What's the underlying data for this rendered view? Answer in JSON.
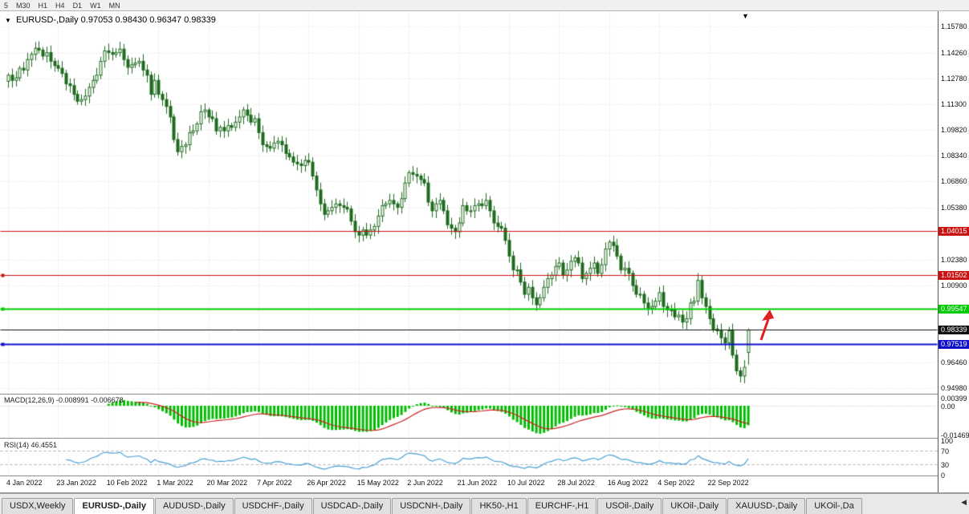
{
  "toolbar": {
    "timeframes": [
      "5",
      "M30",
      "H1",
      "H4",
      "D1",
      "W1",
      "MN"
    ]
  },
  "icons": {
    "dropdown": "▼",
    "bar_marker": "▼",
    "tab_scroll": "◀"
  },
  "chart_data": {
    "type": "candlestick",
    "title": "EURUSD-,Daily",
    "current_ohlc_text": "0.97053 0.98430 0.96347 0.98339",
    "ylim": [
      0.9498,
      1.1578
    ],
    "y_ticks": [
      1.1578,
      1.1426,
      1.1278,
      1.113,
      1.0982,
      1.0834,
      1.0686,
      1.0538,
      1.0238,
      1.009,
      0.9646,
      0.9498
    ],
    "x_tick_labels": [
      "4 Jan 2022",
      "23 Jan 2022",
      "10 Feb 2022",
      "1 Mar 2022",
      "20 Mar 2022",
      "7 Apr 2022",
      "26 Apr 2022",
      "15 May 2022",
      "2 Jun 2022",
      "21 Jun 2022",
      "10 Jul 2022",
      "28 Jul 2022",
      "16 Aug 2022",
      "4 Sep 2022",
      "22 Sep 2022"
    ],
    "x_tick_indices": [
      0,
      13,
      26,
      39,
      52,
      65,
      78,
      91,
      104,
      117,
      130,
      143,
      156,
      169,
      182
    ],
    "closes": [
      1.13,
      1.127,
      1.1285,
      1.134,
      1.133,
      1.139,
      1.142,
      1.1455,
      1.1445,
      1.141,
      1.143,
      1.138,
      1.1355,
      1.134,
      1.131,
      1.125,
      1.124,
      1.119,
      1.115,
      1.116,
      1.118,
      1.123,
      1.127,
      1.13,
      1.138,
      1.144,
      1.143,
      1.142,
      1.143,
      1.145,
      1.139,
      1.1345,
      1.136,
      1.137,
      1.138,
      1.133,
      1.13,
      1.119,
      1.127,
      1.119,
      1.116,
      1.112,
      1.106,
      1.093,
      1.086,
      1.089,
      1.09,
      1.097,
      1.098,
      1.102,
      1.109,
      1.11,
      1.106,
      1.105,
      1.098,
      1.1,
      1.098,
      1.101,
      1.1,
      1.103,
      1.106,
      1.11,
      1.107,
      1.103,
      1.105,
      1.097,
      1.09,
      1.089,
      1.088,
      1.091,
      1.092,
      1.09,
      1.085,
      1.083,
      1.08,
      1.079,
      1.078,
      1.081,
      1.08,
      1.072,
      1.064,
      1.056,
      1.05,
      1.052,
      1.054,
      1.056,
      1.055,
      1.054,
      1.053,
      1.046,
      1.04,
      1.038,
      1.041,
      1.038,
      1.041,
      1.043,
      1.049,
      1.055,
      1.056,
      1.058,
      1.056,
      1.054,
      1.059,
      1.068,
      1.074,
      1.073,
      1.072,
      1.07,
      1.068,
      1.057,
      1.052,
      1.056,
      1.058,
      1.052,
      1.044,
      1.042,
      1.04,
      1.045,
      1.055,
      1.052,
      1.052,
      1.055,
      1.056,
      1.055,
      1.058,
      1.052,
      1.045,
      1.043,
      1.042,
      1.035,
      1.026,
      1.018,
      1.018,
      1.011,
      1.004,
      1.008,
      1.002,
      0.998,
      1.002,
      1.008,
      1.013,
      1.015,
      1.02,
      1.022,
      1.015,
      1.018,
      1.023,
      1.025,
      1.022,
      1.013,
      1.016,
      1.019,
      1.022,
      1.016,
      1.021,
      1.03,
      1.034,
      1.032,
      1.026,
      1.018,
      1.019,
      1.016,
      1.009,
      1.004,
      1.004,
      0.999,
      0.996,
      0.997,
      1.0,
      1.005,
      0.997,
      0.995,
      0.995,
      0.991,
      0.992,
      0.988,
      0.99,
      0.999,
      1.0,
      1.012,
      1.002,
      0.997,
      0.99,
      0.984,
      0.983,
      0.979,
      0.976,
      0.983,
      0.969,
      0.96,
      0.957,
      0.962,
      0.98339
    ],
    "last_candle_ohlc": [
      0.97053,
      0.9843,
      0.96347,
      0.98339
    ],
    "levels": [
      {
        "price": 1.04015,
        "label": "1.04015",
        "color": "#cc1111",
        "width": 1,
        "handle": false
      },
      {
        "price": 1.01502,
        "label": "1.01502",
        "color": "#cc1111",
        "width": 1,
        "handle": true
      },
      {
        "price": 0.99547,
        "label": "0.99547",
        "color": "#00cc00",
        "width": 2,
        "handle": true
      },
      {
        "price": 0.98339,
        "label": "0.98339",
        "color": "#111111",
        "width": 1,
        "handle": false
      },
      {
        "price": 0.97519,
        "label": "0.97519",
        "color": "#1111cc",
        "width": 2,
        "handle": true
      }
    ],
    "indicators": {
      "macd": {
        "label": "MACD(12,26,9)",
        "value_main": "-0.008991",
        "value_signal": "-0.006678",
        "params": [
          12,
          26,
          9
        ],
        "ticks": [
          {
            "v": 0.00399,
            "label": "0.00399"
          },
          {
            "v": 0,
            "label": "0.00"
          },
          {
            "v": -0.01469,
            "label": "-0.01469"
          }
        ]
      },
      "rsi": {
        "label": "RSI(14)",
        "value": "46.4551",
        "period": 14,
        "ticks": [
          {
            "v": 100,
            "label": "100"
          },
          {
            "v": 70,
            "label": "70"
          },
          {
            "v": 30,
            "label": "30"
          },
          {
            "v": 0,
            "label": "0"
          }
        ]
      }
    }
  },
  "colors": {
    "candle_outline": "#1e6b1e",
    "candle_up_fill": "#ffffff",
    "candle_down_fill": "#1e6b1e",
    "grid": "#dcdcdc",
    "macd_hist": "#00bb00",
    "macd_signal": "#cc2222",
    "rsi_line": "#49a0d5",
    "rsi_levels_dash": "#aaaaaa",
    "annotation_arrow": "#e02020"
  },
  "tabs": [
    {
      "label": "USDX,Weekly",
      "active": false
    },
    {
      "label": "EURUSD-,Daily",
      "active": true
    },
    {
      "label": "AUDUSD-,Daily",
      "active": false
    },
    {
      "label": "USDCHF-,Daily",
      "active": false
    },
    {
      "label": "USDCAD-,Daily",
      "active": false
    },
    {
      "label": "USDCNH-,Daily",
      "active": false
    },
    {
      "label": "HK50-,H1",
      "active": false
    },
    {
      "label": "EURCHF-,H1",
      "active": false
    },
    {
      "label": "USOil-,Daily",
      "active": false
    },
    {
      "label": "UKOil-,Daily",
      "active": false
    },
    {
      "label": "XAUUSD-,Daily",
      "active": false
    },
    {
      "label": "UKOil-,Da",
      "active": false
    }
  ]
}
